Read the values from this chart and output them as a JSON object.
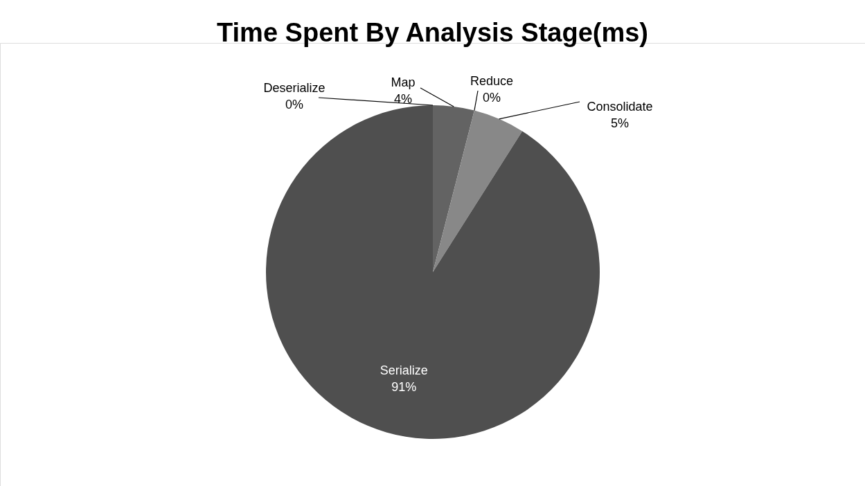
{
  "chart_data": {
    "type": "pie",
    "title": "Time Spent By Analysis Stage(ms)",
    "categories": [
      "Deserialize",
      "Map",
      "Reduce",
      "Consolidate",
      "Serialize"
    ],
    "values": [
      0,
      4,
      0,
      5,
      91
    ],
    "colors": [
      "#3c3c3c",
      "#636363",
      "#707070",
      "#888888",
      "#4f4f4f"
    ],
    "value_labels": [
      "0%",
      "4%",
      "0%",
      "5%",
      "91%"
    ]
  }
}
